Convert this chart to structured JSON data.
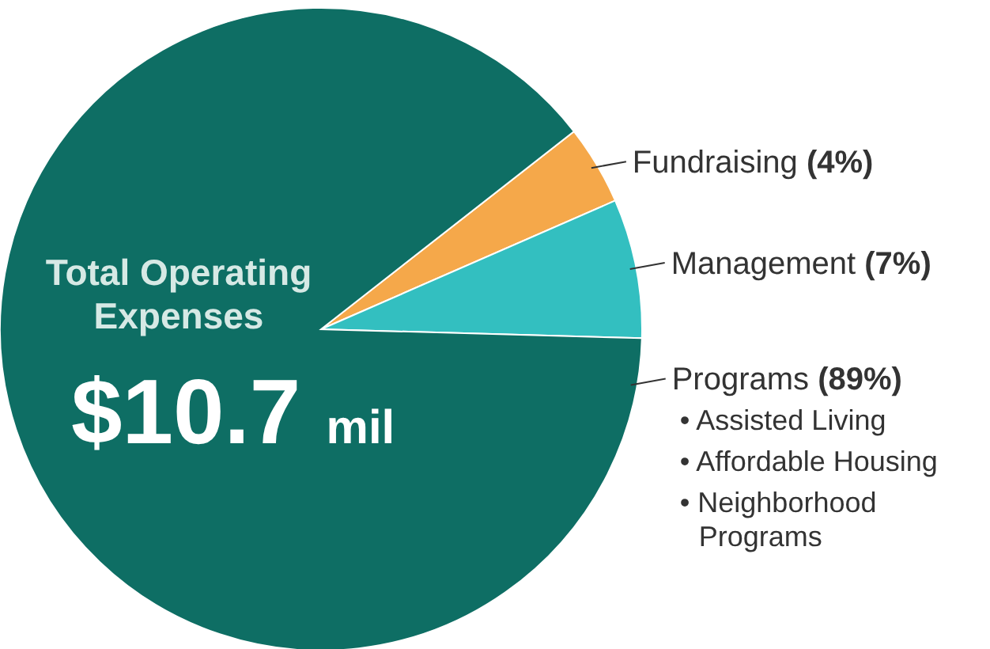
{
  "chart_data": {
    "type": "pie",
    "title": "Total Operating Expenses",
    "subtitle": "$10.7 mil",
    "categories": [
      "Fundraising",
      "Management",
      "Programs"
    ],
    "values": [
      4,
      7,
      89
    ],
    "value_labels": [
      "(4%)",
      "(7%)",
      "(89%)"
    ],
    "colors": [
      "#f5a84a",
      "#33bfc0",
      "#0e6e64"
    ],
    "annotations": [
      "• Assisted Living",
      "• Affordable Housing",
      "• Neighborhood Programs"
    ]
  }
}
